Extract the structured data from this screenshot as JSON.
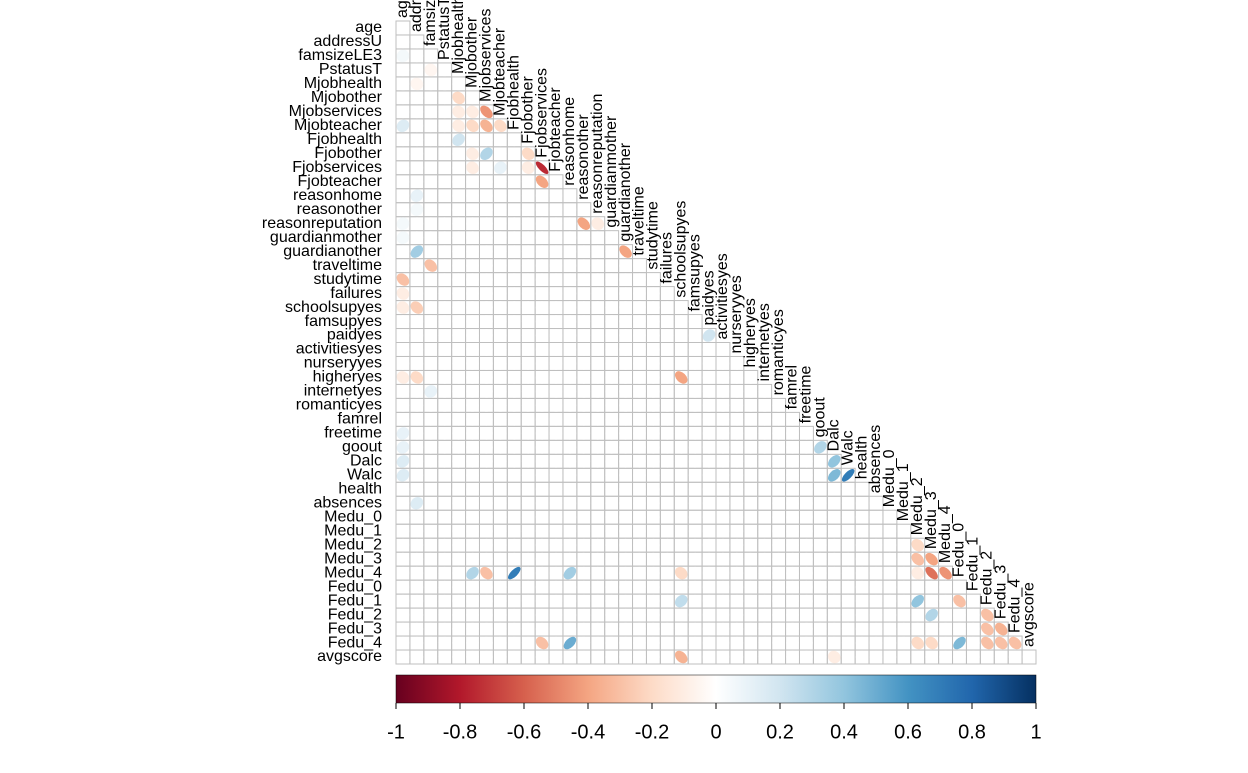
{
  "chart_data": {
    "type": "corrplot",
    "variables": [
      "age",
      "addressU",
      "famsizeLE3",
      "PstatusT",
      "Mjobhealth",
      "Mjobother",
      "Mjobservices",
      "Mjobteacher",
      "Fjobhealth",
      "Fjobother",
      "Fjobservices",
      "Fjobteacher",
      "reasonhome",
      "reasonother",
      "reasonreputation",
      "guardianmother",
      "guardianother",
      "traveltime",
      "studytime",
      "failures",
      "schoolsupyes",
      "famsupyes",
      "paidyes",
      "activitiesyes",
      "nurseryyes",
      "higheryes",
      "internetyes",
      "romanticyes",
      "famrel",
      "freetime",
      "goout",
      "Dalc",
      "Walc",
      "health",
      "absences",
      "Medu_0",
      "Medu_1",
      "Medu_2",
      "Medu_3",
      "Medu_4",
      "Fedu_0",
      "Fedu_1",
      "Fedu_2",
      "Fedu_3",
      "Fedu_4",
      "avgscore"
    ],
    "values": [
      [
        0
      ],
      [
        0,
        0
      ],
      [
        0.05,
        0,
        0
      ],
      [
        0,
        0,
        -0.05,
        0
      ],
      [
        0,
        -0.05,
        0,
        0,
        0
      ],
      [
        0,
        0,
        0,
        0,
        -0.2,
        0
      ],
      [
        0,
        0,
        0,
        0,
        -0.1,
        -0.1,
        -0.45
      ],
      [
        0.15,
        0,
        0,
        0,
        -0.1,
        -0.2,
        -0.35,
        -0.2
      ],
      [
        0,
        0,
        0,
        0,
        0.2,
        0,
        0,
        0,
        0
      ],
      [
        0,
        0,
        0,
        0,
        0,
        -0.1,
        0.3,
        0,
        0,
        -0.2
      ],
      [
        0,
        0,
        0,
        0,
        0,
        -0.1,
        0,
        0.1,
        0,
        -0.1,
        -0.75
      ],
      [
        0,
        0,
        0,
        0,
        0,
        0,
        0,
        0,
        0,
        0,
        -0.4,
        0
      ],
      [
        0,
        0.1,
        0,
        0,
        0,
        0,
        0,
        0,
        0,
        0,
        0,
        0,
        0
      ],
      [
        0,
        0.05,
        0,
        0,
        0,
        0,
        0,
        0,
        0,
        0,
        0,
        0,
        0,
        0
      ],
      [
        0.05,
        0,
        0,
        0,
        0,
        0,
        0,
        0,
        0,
        0,
        0,
        0,
        0,
        -0.4,
        -0.1
      ],
      [
        0.05,
        0,
        0,
        0,
        0,
        0,
        0,
        0,
        0,
        0,
        0,
        0,
        0,
        0,
        0,
        0
      ],
      [
        0,
        0.35,
        0,
        0,
        0,
        0,
        0,
        0,
        0,
        0,
        0,
        0,
        0,
        0,
        0,
        0,
        -0.4
      ],
      [
        0,
        0,
        -0.3,
        0,
        0,
        0,
        0,
        0,
        0,
        0,
        0,
        0,
        0,
        0,
        0,
        0,
        0,
        0
      ],
      [
        -0.3,
        0,
        0,
        0,
        0,
        0,
        0,
        0,
        0,
        0,
        0,
        0,
        0,
        0,
        0,
        0,
        0,
        0,
        0
      ],
      [
        -0.1,
        0,
        0,
        0,
        0,
        0,
        0,
        0,
        0,
        0,
        0,
        0,
        0,
        0,
        0,
        0,
        0,
        0,
        0,
        0
      ],
      [
        -0.1,
        -0.25,
        0,
        0,
        0,
        0,
        0,
        0,
        0,
        0,
        0,
        0,
        0,
        0,
        0,
        0,
        0,
        0,
        0,
        0,
        0
      ],
      [
        0,
        0,
        0,
        0,
        0,
        0,
        0,
        0,
        0,
        0,
        0,
        0,
        0,
        0,
        0,
        0,
        0,
        0,
        0,
        0,
        0,
        0
      ],
      [
        0,
        0,
        0,
        0,
        0,
        0,
        0,
        0,
        0,
        0,
        0,
        0,
        0,
        0,
        0,
        0,
        0,
        0,
        0,
        0,
        0,
        0,
        0.2
      ],
      [
        0,
        0,
        0,
        0,
        0,
        0,
        0,
        0,
        0,
        0,
        0,
        0,
        0,
        0,
        0,
        0,
        0,
        0,
        0,
        0,
        0,
        0,
        0,
        0
      ],
      [
        0,
        0,
        0,
        0,
        0,
        0,
        0,
        0,
        0,
        0,
        0,
        0,
        0,
        0,
        0,
        0,
        0,
        0,
        0,
        0,
        0,
        0,
        0,
        0,
        0
      ],
      [
        -0.1,
        -0.2,
        0,
        0,
        0,
        0,
        0,
        0,
        0,
        0,
        0,
        0,
        0,
        0,
        0,
        0,
        0,
        0,
        0,
        0,
        -0.4,
        0,
        0,
        0,
        0,
        0
      ],
      [
        0,
        0,
        0.1,
        0,
        0,
        0,
        0,
        0,
        0,
        0,
        0,
        0,
        0,
        0,
        0,
        0,
        0,
        0,
        0,
        0,
        0,
        0,
        0,
        0,
        0,
        0,
        0
      ],
      [
        0,
        0,
        0,
        0,
        0,
        0,
        0,
        0,
        0,
        0,
        0,
        0,
        0,
        0,
        0,
        0,
        0,
        0,
        0,
        0,
        0,
        0,
        0,
        0,
        0,
        0,
        0,
        0
      ],
      [
        0,
        0,
        0,
        0,
        0,
        0,
        0,
        0,
        0,
        0,
        0,
        0,
        0,
        0,
        0,
        0,
        0,
        0,
        0,
        0,
        0,
        0,
        0,
        0,
        0,
        0,
        0,
        0,
        0
      ],
      [
        0.1,
        0,
        0,
        0,
        0,
        0,
        0,
        0,
        0,
        0,
        0,
        0,
        0,
        0,
        0,
        0,
        0,
        0,
        0,
        0,
        0,
        0,
        0,
        0,
        0,
        0,
        0,
        0,
        0,
        0
      ],
      [
        0.1,
        0,
        0,
        0,
        0,
        0,
        0,
        0,
        0,
        0,
        0,
        0,
        0,
        0,
        0,
        0,
        0,
        0,
        0,
        0,
        0,
        0,
        0,
        0,
        0,
        0,
        0,
        0,
        0,
        0,
        0.3
      ],
      [
        0.15,
        0,
        0,
        0,
        0,
        0,
        0,
        0,
        0,
        0,
        0,
        0,
        0,
        0,
        0,
        0,
        0,
        0,
        0,
        0,
        0,
        0,
        0,
        0,
        0,
        0,
        0,
        0,
        0,
        0,
        0,
        0.4
      ],
      [
        0.15,
        0,
        0,
        0,
        0,
        0,
        0,
        0,
        0,
        0,
        0,
        0,
        0,
        0,
        0,
        0,
        0,
        0,
        0,
        0,
        0,
        0,
        0,
        0,
        0,
        0,
        0,
        0,
        0,
        0,
        0,
        0.45,
        0.7
      ],
      [
        0,
        0,
        0,
        0,
        0,
        0,
        0,
        0,
        0,
        0,
        0,
        0,
        0,
        0,
        0,
        0,
        0,
        0,
        0,
        0,
        0,
        0,
        0,
        0,
        0,
        0,
        0,
        0,
        0,
        0,
        0,
        0,
        0,
        0
      ],
      [
        0,
        0.15,
        0,
        0,
        0,
        0,
        0,
        0,
        0,
        0,
        0,
        0,
        0,
        0,
        0,
        0,
        0,
        0,
        0,
        0,
        0,
        0,
        0,
        0,
        0,
        0,
        0,
        0,
        0,
        0,
        0,
        0,
        0,
        0,
        0
      ],
      [
        0,
        0,
        0,
        0,
        0,
        0,
        0,
        0,
        0,
        0,
        0,
        0,
        0,
        0,
        0,
        0,
        0,
        0,
        0,
        0,
        0,
        0,
        0,
        0,
        0,
        0,
        0,
        0,
        0,
        0,
        0,
        0,
        0,
        0,
        0,
        0
      ],
      [
        0,
        0,
        0,
        0,
        0,
        0,
        0,
        0,
        0,
        0,
        0,
        0,
        0,
        0,
        0,
        0,
        0,
        0,
        0,
        0,
        0,
        0,
        0,
        0,
        0,
        0,
        0,
        0,
        0,
        0,
        0,
        0,
        0,
        0,
        0,
        0,
        0
      ],
      [
        0,
        0,
        0,
        0,
        0,
        0,
        0,
        0,
        0,
        0,
        0,
        0,
        0,
        0,
        0,
        0,
        0,
        0,
        0,
        0,
        0,
        0,
        0,
        0,
        0,
        0,
        0,
        0,
        0,
        0,
        0,
        0,
        0,
        0,
        0,
        0,
        0,
        -0.2
      ],
      [
        0,
        0,
        0,
        0,
        0,
        0,
        0,
        0,
        0,
        0,
        0,
        0,
        0,
        0,
        0,
        0,
        0,
        0,
        0,
        0,
        0,
        0,
        0,
        0,
        0,
        0,
        0,
        0,
        0,
        0,
        0,
        0,
        0,
        0,
        0,
        0,
        0,
        -0.3,
        -0.4
      ],
      [
        0,
        0,
        0,
        0,
        0,
        0.3,
        -0.3,
        0,
        0.7,
        0,
        0,
        0,
        0.35,
        0,
        0,
        0,
        0,
        0,
        0,
        0,
        -0.2,
        0,
        0,
        0,
        0,
        0,
        0,
        0,
        0,
        0,
        0,
        0,
        0,
        0,
        0,
        0,
        0,
        -0.1,
        -0.55,
        -0.45
      ],
      [
        0,
        0,
        0,
        0,
        0,
        0,
        0,
        0,
        0,
        0,
        0,
        0,
        0,
        0,
        0,
        0,
        0,
        0,
        0,
        0,
        0,
        0,
        0,
        0,
        0,
        0,
        0,
        0,
        0,
        0,
        0,
        0,
        0,
        0,
        0,
        0,
        0,
        0,
        0,
        0,
        0
      ],
      [
        0,
        0,
        0,
        0,
        0,
        0,
        0,
        0,
        0,
        0,
        0,
        0,
        0,
        0,
        0,
        0,
        0,
        0,
        0,
        0,
        0.25,
        0,
        0,
        0,
        0,
        0,
        0,
        0,
        0,
        0,
        0,
        0,
        0,
        0,
        0,
        0,
        0,
        0.4,
        0,
        0,
        -0.3,
        0
      ],
      [
        0,
        0,
        0,
        0,
        0,
        0,
        0,
        0,
        0,
        0,
        0,
        0,
        0,
        0,
        0,
        0,
        0,
        0,
        0,
        0,
        0,
        0,
        0,
        0,
        0,
        0,
        0,
        0,
        0,
        0,
        0,
        0,
        0,
        0,
        0,
        0,
        0,
        0,
        0.3,
        0,
        0,
        0,
        -0.3
      ],
      [
        0,
        0,
        0,
        0,
        0,
        0,
        0,
        0,
        0,
        0,
        0,
        0,
        0,
        0,
        0,
        0,
        0,
        0,
        0,
        0,
        0,
        0,
        0,
        0,
        0,
        0,
        0,
        0,
        0,
        0,
        0,
        0,
        0,
        0,
        0,
        0,
        0,
        0,
        0,
        0,
        0,
        0,
        -0.3,
        -0.35
      ],
      [
        0,
        0,
        0,
        0,
        0,
        0,
        0,
        0,
        0,
        0,
        -0.3,
        0,
        0.5,
        0,
        0,
        0,
        0,
        0,
        0,
        0,
        0,
        0,
        0,
        0,
        0,
        0,
        0,
        0,
        0,
        0,
        0,
        0,
        0,
        0,
        0,
        0,
        0,
        -0.2,
        -0.2,
        0,
        0.45,
        0,
        -0.3,
        -0.3,
        -0.3
      ],
      [
        0,
        0,
        0,
        0,
        0,
        0,
        0,
        0,
        0,
        0,
        0,
        0,
        0,
        0,
        0,
        0,
        0,
        0,
        0,
        0,
        -0.35,
        0,
        0,
        0,
        0,
        0,
        0,
        0,
        0,
        0,
        0,
        -0.1,
        0,
        0,
        0,
        0,
        0,
        0,
        0,
        0,
        0,
        0,
        0,
        0,
        0,
        0
      ]
    ],
    "clim": [
      -1,
      1
    ],
    "cticks": [
      -1,
      -0.8,
      -0.6,
      -0.4,
      -0.2,
      0,
      0.2,
      0.4,
      0.6,
      0.8,
      1
    ],
    "colorscale": [
      "#67001F",
      "#B2182B",
      "#D6604D",
      "#F4A582",
      "#FDDBC7",
      "#FFFFFF",
      "#D1E5F0",
      "#92C5DE",
      "#4393C3",
      "#2166AC",
      "#053061"
    ]
  }
}
